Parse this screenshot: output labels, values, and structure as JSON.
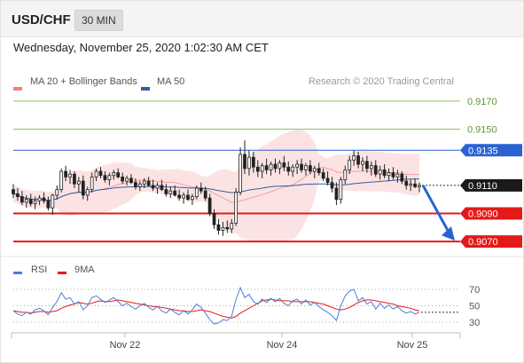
{
  "header": {
    "symbol": "USD/CHF",
    "interval": "30 MIN"
  },
  "datetime": "Wednesday, November 25, 2020 1:02:30 AM CET",
  "credit": "Research © 2020 Trading Central",
  "colors": {
    "bollinger": "#f08080",
    "ma50": "#2e5fa3",
    "resistance": "#8cc46a",
    "support": "#e61919",
    "pivot": "#2a62d2",
    "arrow": "#2a62d2",
    "rsi": "#4a7fd4",
    "rsi_ma": "#e61919",
    "price_tag": "#1a1a1a"
  },
  "chart_data": [
    {
      "type": "line",
      "panel": "price",
      "legend": [
        {
          "name": "MA 20 + Bollinger Bands",
          "color": "#f08080"
        },
        {
          "name": "MA 50",
          "color": "#2e5fa3"
        }
      ],
      "x_ticks": [
        "Nov 22",
        "Nov 24",
        "Nov 25"
      ],
      "ylim": [
        9060,
        9180
      ],
      "levels": [
        {
          "value": 9170,
          "label": "0.9170",
          "kind": "resistance"
        },
        {
          "value": 9150,
          "label": "0.9150",
          "kind": "resistance"
        },
        {
          "value": 9135,
          "label": "0.9135",
          "kind": "pivot"
        },
        {
          "value": 9090,
          "label": "0.9090",
          "kind": "support"
        },
        {
          "value": 9070,
          "label": "0.9070",
          "kind": "support"
        }
      ],
      "last_price": {
        "value": 9110,
        "label": "0.9110"
      },
      "arrow": {
        "from": 9110,
        "to": 9070
      },
      "candles_ohlc": [
        [
          9107,
          9111,
          9101,
          9104
        ],
        [
          9104,
          9108,
          9099,
          9102
        ],
        [
          9102,
          9106,
          9096,
          9098
        ],
        [
          9098,
          9103,
          9094,
          9100
        ],
        [
          9100,
          9104,
          9095,
          9097
        ],
        [
          9097,
          9102,
          9093,
          9099
        ],
        [
          9099,
          9103,
          9096,
          9101
        ],
        [
          9101,
          9105,
          9097,
          9099
        ],
        [
          9099,
          9102,
          9092,
          9094
        ],
        [
          9094,
          9104,
          9089,
          9103
        ],
        [
          9103,
          9110,
          9100,
          9107
        ],
        [
          9107,
          9122,
          9105,
          9120
        ],
        [
          9120,
          9124,
          9113,
          9116
        ],
        [
          9116,
          9121,
          9111,
          9118
        ],
        [
          9118,
          9120,
          9108,
          9111
        ],
        [
          9111,
          9116,
          9105,
          9113
        ],
        [
          9113,
          9117,
          9100,
          9103
        ],
        [
          9103,
          9109,
          9099,
          9107
        ],
        [
          9107,
          9119,
          9105,
          9116
        ],
        [
          9116,
          9122,
          9113,
          9120
        ],
        [
          9120,
          9123,
          9115,
          9117
        ],
        [
          9117,
          9120,
          9112,
          9114
        ],
        [
          9114,
          9119,
          9110,
          9117
        ],
        [
          9117,
          9121,
          9114,
          9119
        ],
        [
          9119,
          9122,
          9115,
          9116
        ],
        [
          9116,
          9119,
          9111,
          9113
        ],
        [
          9113,
          9117,
          9110,
          9115
        ],
        [
          9115,
          9118,
          9111,
          9112
        ],
        [
          9112,
          9115,
          9107,
          9109
        ],
        [
          9109,
          9113,
          9106,
          9111
        ],
        [
          9111,
          9115,
          9108,
          9113
        ],
        [
          9113,
          9116,
          9109,
          9110
        ],
        [
          9110,
          9114,
          9106,
          9108
        ],
        [
          9108,
          9112,
          9104,
          9110
        ],
        [
          9110,
          9114,
          9106,
          9107
        ],
        [
          9107,
          9111,
          9102,
          9104
        ],
        [
          9104,
          9109,
          9101,
          9106
        ],
        [
          9106,
          9110,
          9102,
          9103
        ],
        [
          9103,
          9107,
          9099,
          9101
        ],
        [
          9101,
          9105,
          9097,
          9103
        ],
        [
          9103,
          9107,
          9099,
          9100
        ],
        [
          9100,
          9104,
          9096,
          9102
        ],
        [
          9102,
          9110,
          9100,
          9108
        ],
        [
          9108,
          9112,
          9104,
          9106
        ],
        [
          9106,
          9109,
          9099,
          9101
        ],
        [
          9101,
          9104,
          9088,
          9090
        ],
        [
          9090,
          9093,
          9079,
          9082
        ],
        [
          9082,
          9086,
          9075,
          9078
        ],
        [
          9078,
          9084,
          9074,
          9080
        ],
        [
          9080,
          9085,
          9076,
          9079
        ],
        [
          9079,
          9086,
          9076,
          9083
        ],
        [
          9083,
          9108,
          9081,
          9105
        ],
        [
          9105,
          9137,
          9103,
          9132
        ],
        [
          9132,
          9142,
          9118,
          9122
        ],
        [
          9122,
          9135,
          9117,
          9130
        ],
        [
          9130,
          9134,
          9119,
          9123
        ],
        [
          9123,
          9128,
          9116,
          9120
        ],
        [
          9120,
          9126,
          9115,
          9124
        ],
        [
          9124,
          9129,
          9118,
          9121
        ],
        [
          9121,
          9127,
          9117,
          9125
        ],
        [
          9125,
          9129,
          9119,
          9122
        ],
        [
          9122,
          9128,
          9118,
          9126
        ],
        [
          9126,
          9131,
          9120,
          9123
        ],
        [
          9123,
          9127,
          9117,
          9120
        ],
        [
          9120,
          9125,
          9116,
          9123
        ],
        [
          9123,
          9128,
          9118,
          9125
        ],
        [
          9125,
          9129,
          9119,
          9121
        ],
        [
          9121,
          9126,
          9117,
          9124
        ],
        [
          9124,
          9128,
          9118,
          9120
        ],
        [
          9120,
          9124,
          9115,
          9122
        ],
        [
          9122,
          9126,
          9117,
          9119
        ],
        [
          9119,
          9122,
          9113,
          9115
        ],
        [
          9115,
          9120,
          9110,
          9112
        ],
        [
          9112,
          9116,
          9105,
          9108
        ],
        [
          9108,
          9112,
          9096,
          9100
        ],
        [
          9100,
          9116,
          9097,
          9114
        ],
        [
          9114,
          9124,
          9111,
          9121
        ],
        [
          9121,
          9131,
          9118,
          9128
        ],
        [
          9128,
          9135,
          9124,
          9131
        ],
        [
          9131,
          9134,
          9122,
          9125
        ],
        [
          9125,
          9130,
          9120,
          9127
        ],
        [
          9127,
          9131,
          9119,
          9122
        ],
        [
          9122,
          9127,
          9117,
          9124
        ],
        [
          9124,
          9128,
          9116,
          9118
        ],
        [
          9118,
          9124,
          9114,
          9121
        ],
        [
          9121,
          9125,
          9115,
          9117
        ],
        [
          9117,
          9122,
          9113,
          9119
        ],
        [
          9119,
          9123,
          9114,
          9116
        ],
        [
          9116,
          9121,
          9112,
          9118
        ],
        [
          9118,
          9120,
          9111,
          9113
        ],
        [
          9113,
          9117,
          9107,
          9110
        ],
        [
          9110,
          9114,
          9106,
          9111
        ],
        [
          9111,
          9115,
          9108,
          9109
        ],
        [
          9109,
          9112,
          9105,
          9110
        ]
      ]
    },
    {
      "type": "line",
      "panel": "oscillator",
      "legend": [
        {
          "name": "RSI",
          "color": "#4a7fd4"
        },
        {
          "name": "9MA",
          "color": "#e61919"
        }
      ],
      "ylim": [
        25,
        75
      ],
      "y_ticks": [
        70,
        50,
        30
      ],
      "series": [
        {
          "name": "RSI",
          "values": [
            44,
            40,
            38,
            42,
            40,
            45,
            47,
            44,
            39,
            48,
            55,
            66,
            58,
            60,
            52,
            55,
            45,
            50,
            60,
            62,
            58,
            54,
            57,
            60,
            55,
            50,
            53,
            49,
            46,
            50,
            53,
            48,
            45,
            49,
            44,
            41,
            46,
            42,
            39,
            44,
            40,
            45,
            52,
            48,
            41,
            33,
            28,
            29,
            33,
            32,
            37,
            58,
            72,
            60,
            64,
            55,
            52,
            58,
            54,
            59,
            55,
            59,
            53,
            50,
            56,
            58,
            52,
            57,
            51,
            54,
            49,
            45,
            42,
            38,
            32,
            50,
            62,
            68,
            70,
            56,
            60,
            52,
            55,
            46,
            53,
            47,
            51,
            46,
            49,
            44,
            41,
            43,
            40,
            42
          ]
        },
        {
          "name": "9MA",
          "values": [
            44,
            43,
            42,
            42,
            41,
            42,
            43,
            43,
            42,
            43,
            44,
            47,
            49,
            51,
            52,
            54,
            53,
            52,
            53,
            55,
            56,
            55,
            55,
            56,
            57,
            56,
            55,
            54,
            53,
            52,
            51,
            50,
            49,
            49,
            48,
            47,
            46,
            45,
            44,
            44,
            43,
            43,
            44,
            45,
            44,
            43,
            41,
            39,
            37,
            36,
            35,
            37,
            41,
            44,
            47,
            50,
            53,
            56,
            57,
            58,
            57,
            56,
            56,
            56,
            55,
            55,
            55,
            55,
            55,
            54,
            53,
            52,
            50,
            48,
            46,
            45,
            46,
            48,
            51,
            54,
            56,
            57,
            57,
            56,
            55,
            54,
            53,
            52,
            50,
            49,
            48,
            47,
            45,
            44
          ]
        }
      ]
    }
  ]
}
